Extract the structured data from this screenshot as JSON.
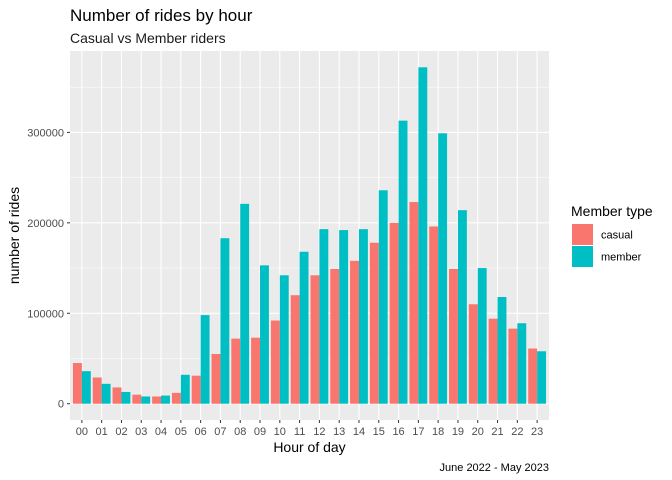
{
  "chart_data": {
    "type": "bar",
    "title": "Number of rides by hour",
    "subtitle": "Casual vs Member riders",
    "xlabel": "Hour of day",
    "ylabel": "number of rides",
    "caption": "June 2022 - May 2023",
    "legend": {
      "title": "Member type",
      "position": "right"
    },
    "categories": [
      "00",
      "01",
      "02",
      "03",
      "04",
      "05",
      "06",
      "07",
      "08",
      "09",
      "10",
      "11",
      "12",
      "13",
      "14",
      "15",
      "16",
      "17",
      "18",
      "19",
      "20",
      "21",
      "22",
      "23"
    ],
    "ylim": [
      -18000,
      390000
    ],
    "yticks": [
      0,
      100000,
      200000,
      300000
    ],
    "ytick_labels": [
      "0",
      "100000",
      "200000",
      "300000"
    ],
    "grid": true,
    "series": [
      {
        "name": "casual",
        "color": "#F8766D",
        "values": [
          45000,
          29000,
          18000,
          10000,
          8000,
          12000,
          31000,
          55000,
          72000,
          73000,
          92000,
          120000,
          142000,
          149000,
          158000,
          178000,
          200000,
          223000,
          196000,
          149000,
          110000,
          94000,
          83000,
          61000
        ]
      },
      {
        "name": "member",
        "color": "#00BFC4",
        "values": [
          36000,
          22000,
          13000,
          8000,
          9000,
          32000,
          98000,
          183000,
          221000,
          153000,
          142000,
          168000,
          193000,
          192000,
          193000,
          236000,
          313000,
          372000,
          299000,
          214000,
          150000,
          118000,
          89000,
          58000
        ]
      }
    ]
  }
}
